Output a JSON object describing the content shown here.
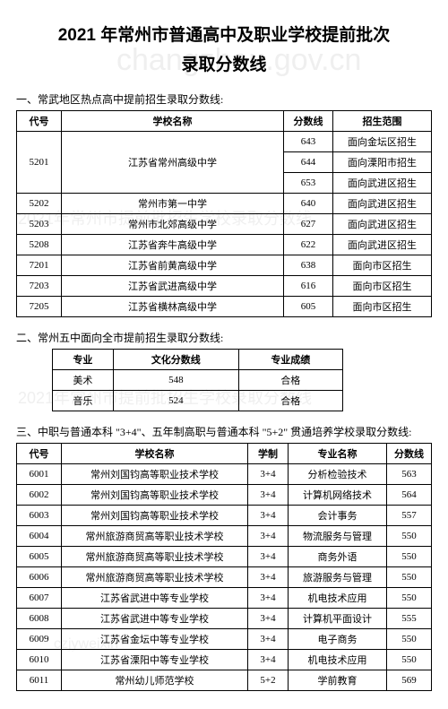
{
  "title_line1": "2021 年常州市普通高中及职业学校提前批次",
  "title_line2": "录取分数线",
  "watermark1": "changzhou.gov.cn",
  "watermark2": "2021年常州市提前批招生学校录取分数线",
  "watermark3": "2021年常州市提前批招生学校录取分数线",
  "watermark4": "czjyweixin",
  "section1": {
    "heading": "一、常武地区热点高中提前招生录取分数线:",
    "headers": [
      "代号",
      "学校名称",
      "分数线",
      "招生范围"
    ],
    "rows": [
      {
        "code": "5201",
        "name": "江苏省常州高级中学",
        "score": "643",
        "scope": "面向金坛区招生",
        "rowspan": 3
      },
      {
        "score": "644",
        "scope": "面向溧阳市招生"
      },
      {
        "score": "653",
        "scope": "面向武进区招生"
      },
      {
        "code": "5202",
        "name": "常州市第一中学",
        "score": "640",
        "scope": "面向武进区招生"
      },
      {
        "code": "5203",
        "name": "常州市北郊高级中学",
        "score": "627",
        "scope": "面向武进区招生"
      },
      {
        "code": "5208",
        "name": "江苏省奔牛高级中学",
        "score": "622",
        "scope": "面向武进区招生"
      },
      {
        "code": "7201",
        "name": "江苏省前黄高级中学",
        "score": "638",
        "scope": "面向市区招生"
      },
      {
        "code": "7203",
        "name": "江苏省武进高级中学",
        "score": "616",
        "scope": "面向市区招生"
      },
      {
        "code": "7205",
        "name": "江苏省横林高级中学",
        "score": "605",
        "scope": "面向市区招生"
      }
    ]
  },
  "section2": {
    "heading": "二、常州五中面向全市提前招生录取分数线:",
    "headers": [
      "专业",
      "文化分数线",
      "专业成绩"
    ],
    "rows": [
      {
        "major": "美术",
        "score": "548",
        "result": "合格"
      },
      {
        "major": "音乐",
        "score": "524",
        "result": "合格"
      }
    ]
  },
  "section3": {
    "heading": "三、中职与普通本科 \"3+4\"、五年制高职与普通本科 \"5+2\" 贯通培养学校录取分数线:",
    "headers": [
      "代号",
      "学校名称",
      "学制",
      "专业名称",
      "分数线"
    ],
    "rows": [
      {
        "code": "6001",
        "name": "常州刘国钧高等职业技术学校",
        "xuezhi": "3+4",
        "major": "分析检验技术",
        "score": "563"
      },
      {
        "code": "6002",
        "name": "常州刘国钧高等职业技术学校",
        "xuezhi": "3+4",
        "major": "计算机网络技术",
        "score": "564"
      },
      {
        "code": "6003",
        "name": "常州刘国钧高等职业技术学校",
        "xuezhi": "3+4",
        "major": "会计事务",
        "score": "557"
      },
      {
        "code": "6004",
        "name": "常州旅游商贸高等职业技术学校",
        "xuezhi": "3+4",
        "major": "物流服务与管理",
        "score": "550"
      },
      {
        "code": "6005",
        "name": "常州旅游商贸高等职业技术学校",
        "xuezhi": "3+4",
        "major": "商务外语",
        "score": "550"
      },
      {
        "code": "6006",
        "name": "常州旅游商贸高等职业技术学校",
        "xuezhi": "3+4",
        "major": "旅游服务与管理",
        "score": "550"
      },
      {
        "code": "6007",
        "name": "江苏省武进中等专业学校",
        "xuezhi": "3+4",
        "major": "机电技术应用",
        "score": "550"
      },
      {
        "code": "6008",
        "name": "江苏省武进中等专业学校",
        "xuezhi": "3+4",
        "major": "计算机平面设计",
        "score": "555"
      },
      {
        "code": "6009",
        "name": "江苏省金坛中等专业学校",
        "xuezhi": "3+4",
        "major": "电子商务",
        "score": "550"
      },
      {
        "code": "6010",
        "name": "江苏省溧阳中等专业学校",
        "xuezhi": "3+4",
        "major": "机电技术应用",
        "score": "550"
      },
      {
        "code": "6011",
        "name": "常州幼儿师范学校",
        "xuezhi": "5+2",
        "major": "学前教育",
        "score": "569"
      }
    ]
  }
}
